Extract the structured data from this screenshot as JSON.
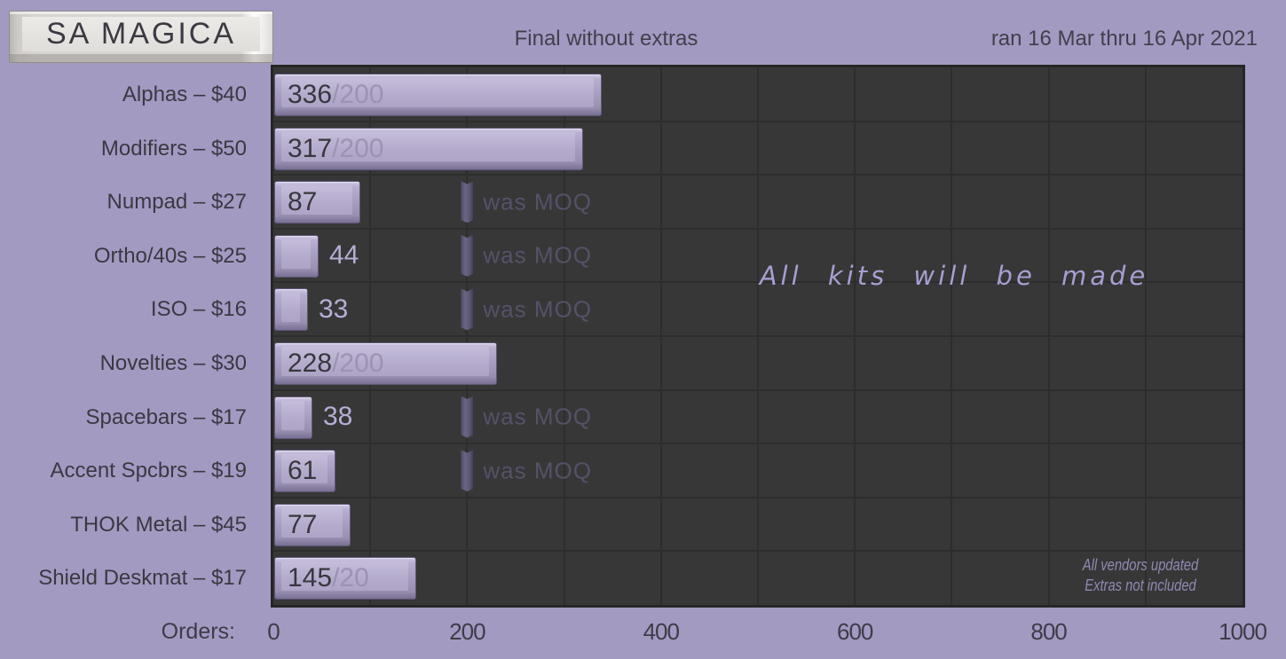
{
  "header": {
    "brand": "SA MAGICA",
    "title": "Final without extras",
    "date_range": "ran 16 Mar thru 16 Apr 2021"
  },
  "chart_data": {
    "type": "bar",
    "orientation": "horizontal",
    "title": "Final without extras",
    "xlabel": "Orders:",
    "xlim": [
      0,
      1000
    ],
    "x_ticks": [
      0,
      200,
      400,
      600,
      800,
      1000
    ],
    "minor_grid_step": 100,
    "grid": true,
    "moq_marker_value": 200,
    "moq_marker_label": "was MOQ",
    "annotation_center": "All kits will be made",
    "annotation_corner": [
      "All vendors updated",
      "Extras not included"
    ],
    "rows": [
      {
        "label": "Alphas – $40",
        "value": 336,
        "moq_display": "/200",
        "value_placement": "inside",
        "moq_marker": false
      },
      {
        "label": "Modifiers – $50",
        "value": 317,
        "moq_display": "/200",
        "value_placement": "inside",
        "moq_marker": false
      },
      {
        "label": "Numpad – $27",
        "value": 87,
        "moq_display": "",
        "value_placement": "inside",
        "moq_marker": true
      },
      {
        "label": "Ortho/40s – $25",
        "value": 44,
        "moq_display": "",
        "value_placement": "outside",
        "moq_marker": true
      },
      {
        "label": "ISO – $16",
        "value": 33,
        "moq_display": "",
        "value_placement": "outside",
        "moq_marker": true
      },
      {
        "label": "Novelties – $30",
        "value": 228,
        "moq_display": "/200",
        "value_placement": "inside",
        "moq_marker": false
      },
      {
        "label": "Spacebars – $17",
        "value": 38,
        "moq_display": "",
        "value_placement": "outside",
        "moq_marker": true
      },
      {
        "label": "Accent Spcbrs – $19",
        "value": 61,
        "moq_display": "",
        "value_placement": "inside",
        "moq_marker": true
      },
      {
        "label": "THOK Metal – $45",
        "value": 77,
        "moq_display": "",
        "value_placement": "inside",
        "moq_marker": false
      },
      {
        "label": "Shield Deskmat – $17",
        "value": 145,
        "moq_display": "/20",
        "value_placement": "inside",
        "moq_marker": false
      }
    ],
    "colors": {
      "page_background": "#a39ac2",
      "plot_background": "#373737",
      "gridline": "#2d2d2d",
      "bar_face": "#b4abcc",
      "bar_edge": "#5e5777",
      "value_text": "#39363f",
      "faded_moq_text": "#9c93b2",
      "outside_value_text": "#b7aed6",
      "annotation_text": "#a89ed2"
    }
  }
}
